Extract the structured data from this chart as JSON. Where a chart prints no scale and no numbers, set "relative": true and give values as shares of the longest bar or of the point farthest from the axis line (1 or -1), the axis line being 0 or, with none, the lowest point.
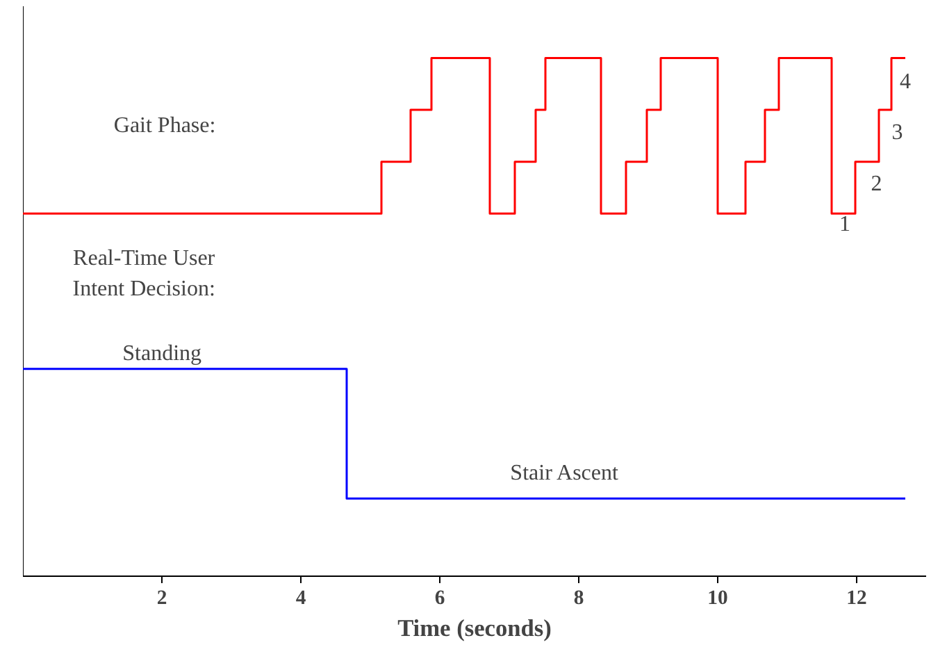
{
  "chart_data": {
    "type": "step",
    "relative": true,
    "xlabel": "Time (seconds)",
    "xlim": [
      0,
      13
    ],
    "xticks": [
      2,
      4,
      6,
      8,
      10,
      12
    ],
    "grid": false,
    "series": [
      {
        "color": "#ff0000",
        "x": [
          0,
          5.16,
          5.58,
          5.88,
          6.72,
          7.08,
          7.38,
          7.52,
          8.32,
          8.68,
          8.98,
          9.18,
          10.0,
          10.4,
          10.68,
          10.88,
          11.64,
          11.98,
          12.32,
          12.5,
          12.7
        ],
        "values": [
          0.7,
          0.8,
          0.9,
          1.0,
          0.7,
          0.8,
          0.9,
          1.0,
          0.7,
          0.8,
          0.9,
          1.0,
          0.7,
          0.8,
          0.9,
          1.0,
          0.7,
          0.8,
          0.9,
          1.0,
          1.0
        ]
      },
      {
        "color": "#0000ff",
        "x": [
          0,
          4.66,
          12.7
        ],
        "values": [
          0.4,
          0.15,
          0.15
        ]
      }
    ],
    "annotations": [
      "Gait Phase:",
      "Real-Time User\nIntent Decision:",
      "Standing",
      "Stair Ascent",
      "1",
      "2",
      "3",
      "4"
    ]
  }
}
